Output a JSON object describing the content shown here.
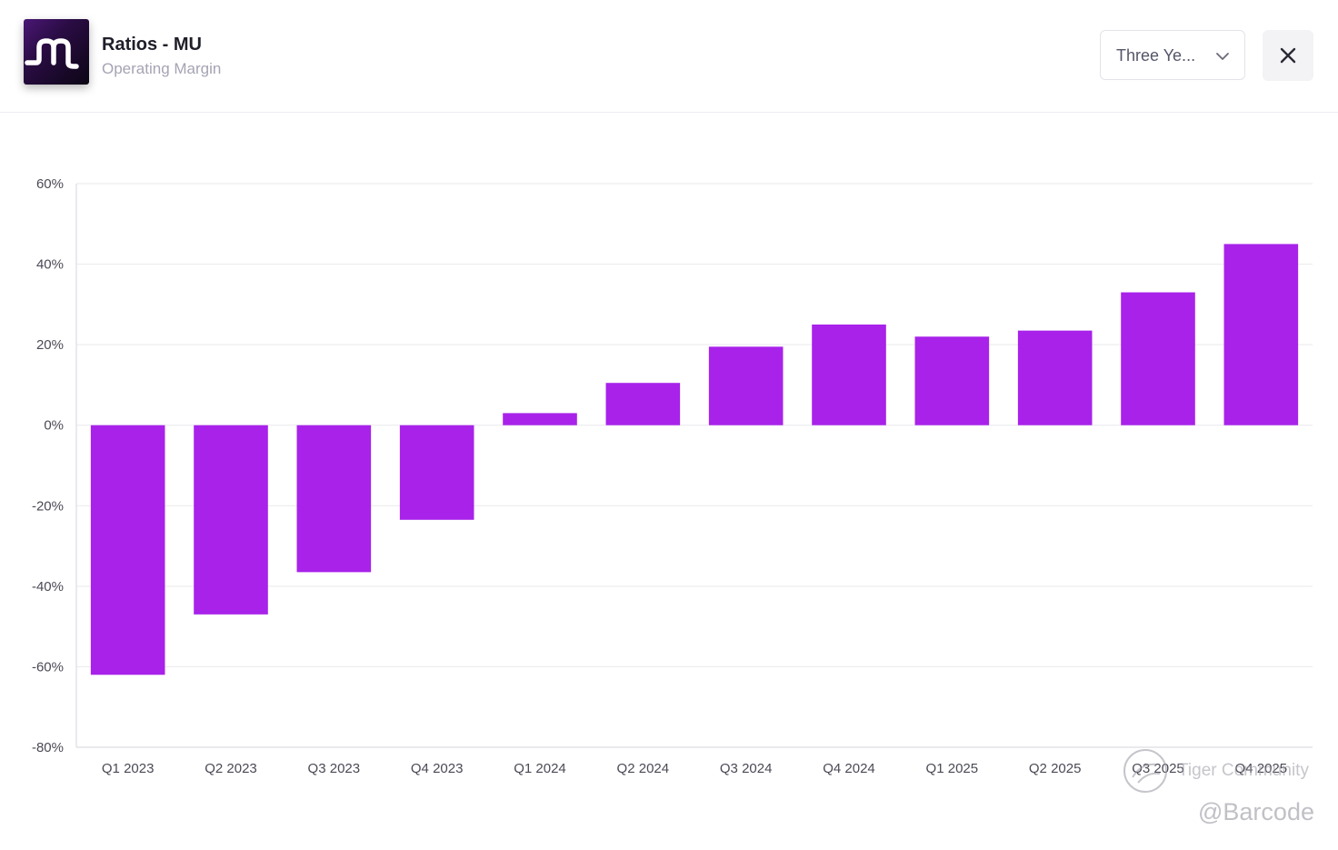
{
  "header": {
    "title": "Ratios - MU",
    "subtitle": "Operating Margin",
    "logo_icon": "m-logo-icon",
    "period_select": {
      "value": "Three Ye...",
      "icon": "chevron-down-icon"
    },
    "close_icon": "close-icon"
  },
  "colors": {
    "bar": "#a822ea",
    "grid": "#e9e9ee",
    "axis": "#d6d6dd",
    "logo_stroke": "#ffffff"
  },
  "chart_data": {
    "type": "bar",
    "categories": [
      "Q1 2023",
      "Q2 2023",
      "Q3 2023",
      "Q4 2023",
      "Q1 2024",
      "Q2 2024",
      "Q3 2024",
      "Q4 2024",
      "Q1 2025",
      "Q2 2025",
      "Q3 2025",
      "Q4 2025"
    ],
    "values": [
      -62,
      -47,
      -36.5,
      -23.5,
      3,
      10.5,
      19.5,
      25,
      22,
      23.5,
      33,
      45
    ],
    "ylim": [
      -80,
      60
    ],
    "yticks": [
      60,
      40,
      20,
      0,
      -20,
      -40,
      -60,
      -80
    ],
    "ytick_labels": [
      "60%",
      "40%",
      "20%",
      "0%",
      "-20%",
      "-40%",
      "-60%",
      "-80%"
    ],
    "grid": true,
    "legend": "none",
    "title": "",
    "xlabel": "",
    "ylabel": ""
  },
  "watermarks": {
    "community": "Tiger Community",
    "handle": "@Barcode"
  }
}
